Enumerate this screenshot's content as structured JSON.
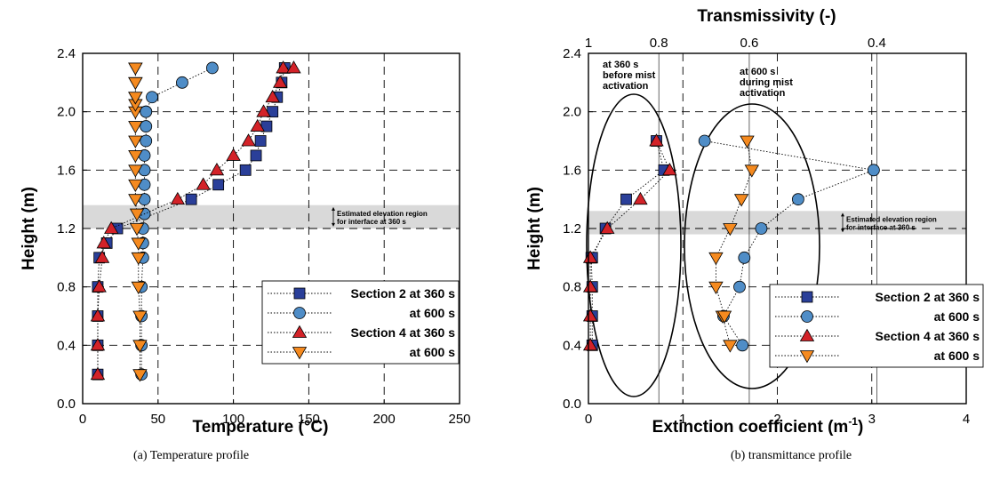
{
  "chart_data": [
    {
      "type": "scatter",
      "caption": "(a)  Temperature profile",
      "xlabel": "Temperature (°C)",
      "ylabel": "Height (m)",
      "xlim": [
        0,
        250
      ],
      "ylim": [
        0,
        2.4
      ],
      "x_ticks": [
        "0",
        "50",
        "100",
        "150",
        "200",
        "250"
      ],
      "y_ticks": [
        "0.0",
        "0.4",
        "0.8",
        "1.2",
        "1.6",
        "2.0",
        "2.4"
      ],
      "grid": true,
      "legend_position": "bottom-right",
      "band": {
        "y": [
          1.2,
          1.36
        ],
        "label_line1": "Estimated elevation region",
        "label_line2": "for interface at 360 s"
      },
      "series": [
        {
          "name": "Section 2 at 360 s",
          "marker": "square",
          "color": "#2a3f99",
          "x": [
            10,
            10,
            10,
            10,
            11,
            16,
            23,
            72,
            90,
            108,
            115,
            118,
            122,
            126,
            129,
            132,
            134
          ],
          "y": [
            0.2,
            0.4,
            0.6,
            0.8,
            1.0,
            1.1,
            1.2,
            1.4,
            1.5,
            1.6,
            1.7,
            1.8,
            1.9,
            2.0,
            2.1,
            2.2,
            2.3
          ]
        },
        {
          "name": "at 600 s",
          "marker": "circle",
          "color": "#4f8dc7",
          "x": [
            39,
            39,
            39,
            39,
            40,
            40,
            40,
            41,
            41,
            41,
            41,
            41,
            42,
            42,
            42,
            42,
            46,
            66,
            86
          ],
          "y": [
            0.2,
            0.4,
            0.6,
            0.8,
            1.0,
            1.1,
            1.2,
            1.3,
            1.4,
            1.5,
            1.6,
            1.7,
            1.8,
            1.9,
            2.0,
            2.0,
            2.1,
            2.2,
            2.3
          ]
        },
        {
          "name": "Section 4 at 360 s",
          "marker": "triangle-up",
          "color": "#d32228",
          "x": [
            10,
            10,
            10,
            11,
            13,
            14,
            19,
            63,
            80,
            89,
            100,
            110,
            116,
            120,
            126,
            131,
            133,
            140
          ],
          "y": [
            0.2,
            0.4,
            0.6,
            0.8,
            1.0,
            1.1,
            1.2,
            1.4,
            1.5,
            1.6,
            1.7,
            1.8,
            1.9,
            2.0,
            2.1,
            2.2,
            2.3,
            2.3
          ]
        },
        {
          "name": "at 600 s",
          "marker": "triangle-down",
          "color": "#f58a1f",
          "x": [
            38,
            38,
            38,
            37,
            37,
            37,
            36,
            36,
            35,
            35,
            35,
            35,
            35,
            35,
            35,
            35,
            35,
            35,
            35,
            35,
            35,
            35
          ],
          "y": [
            0.2,
            0.4,
            0.6,
            0.8,
            1.0,
            1.1,
            1.2,
            1.3,
            1.4,
            1.5,
            1.6,
            1.7,
            1.8,
            1.9,
            2.0,
            2.05,
            2.1,
            2.1,
            2.2,
            2.2,
            2.3,
            2.3
          ]
        }
      ]
    },
    {
      "type": "scatter",
      "caption": "(b)  transmittance profile",
      "xlabel_main": "Extinction coefficient (m",
      "xlabel_sup": "-1",
      "xlabel_end": ")",
      "ylabel": "Height (m)",
      "top_axis_label": "Transmissivity (-)",
      "top_ticks": [
        {
          "label": "1",
          "x": 0
        },
        {
          "label": "0.8",
          "x": 0.745
        },
        {
          "label": "0.6",
          "x": 1.703
        },
        {
          "label": "0.4",
          "x": 3.054
        }
      ],
      "xlim": [
        0,
        4
      ],
      "ylim": [
        0,
        2.4
      ],
      "x_ticks": [
        "0",
        "1",
        "2",
        "3",
        "4"
      ],
      "y_ticks": [
        "0.0",
        "0.4",
        "0.8",
        "1.2",
        "1.6",
        "2.0",
        "2.4"
      ],
      "grid": true,
      "legend_position": "bottom-right",
      "band": {
        "y": [
          1.16,
          1.32
        ],
        "label_line1": "Estimated elevation region",
        "label_line2": "for interface at 360 s"
      },
      "annotations": [
        {
          "lines": [
            "at 360 s",
            "before mist",
            "activation"
          ]
        },
        {
          "lines": [
            "at 600 s",
            "during mist",
            "activation"
          ]
        }
      ],
      "series": [
        {
          "name": "Section 2 at 360 s",
          "marker": "square",
          "color": "#2a3f99",
          "x": [
            0.04,
            0.04,
            0.04,
            0.03,
            0.04,
            0.18,
            0.4,
            0.8,
            0.72
          ],
          "y": [
            0.4,
            0.6,
            0.8,
            1.0,
            1.0,
            1.2,
            1.4,
            1.6,
            1.8
          ]
        },
        {
          "name": "at 600 s",
          "marker": "circle",
          "color": "#4f8dc7",
          "x": [
            1.63,
            1.43,
            1.6,
            1.65,
            1.83,
            2.22,
            3.02,
            1.23
          ],
          "y": [
            0.4,
            0.6,
            0.8,
            1.0,
            1.2,
            1.4,
            1.6,
            1.8
          ]
        },
        {
          "name": "Section 4 at 360 s",
          "marker": "triangle-up",
          "color": "#d32228",
          "x": [
            0.02,
            0.02,
            0.02,
            0.02,
            0.2,
            0.55,
            0.86,
            0.72
          ],
          "y": [
            0.4,
            0.6,
            0.8,
            1.0,
            1.2,
            1.4,
            1.6,
            1.8
          ]
        },
        {
          "name": "at 600 s",
          "marker": "triangle-down",
          "color": "#f58a1f",
          "x": [
            1.5,
            1.42,
            1.44,
            1.35,
            1.35,
            1.5,
            1.62,
            1.73,
            1.68
          ],
          "y": [
            0.4,
            0.6,
            0.6,
            0.8,
            1.0,
            1.2,
            1.4,
            1.6,
            1.8
          ]
        }
      ]
    }
  ]
}
